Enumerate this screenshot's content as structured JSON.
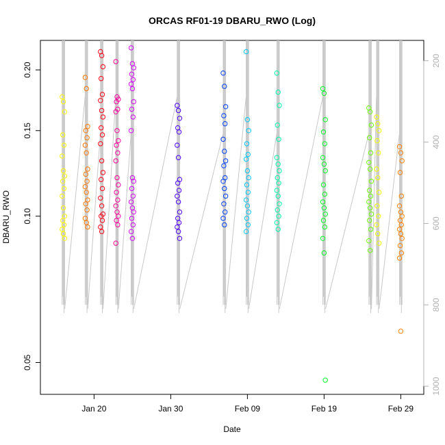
{
  "chart_data": {
    "type": "scatter",
    "title": "ORCAS RF01-19 DBARU_RWO (Log)",
    "xlabel": "Date",
    "ylabel": "DBARU_RWO",
    "y_scale": "log",
    "x_ticks": [
      "Jan 20",
      "Jan 30",
      "Feb 09",
      "Feb 19",
      "Feb 29"
    ],
    "y_ticks": [
      "0.05",
      "0.10",
      "0.15",
      "0.20"
    ],
    "y2_ticks": [
      "200",
      "400",
      "600",
      "800",
      "1000"
    ],
    "xlim": [
      "2016-01-13",
      "2016-03-03"
    ],
    "ylim": [
      0.043,
      0.23
    ],
    "y2lim": [
      150,
      1020
    ],
    "y2_reversed": true,
    "color_scale": "rainbow from yellow (first flight) to pink (last flight)",
    "flights": [
      {
        "date": "2016-01-16",
        "y": [
          0.176,
          0.172,
          0.164,
          0.147,
          0.14,
          0.133,
          0.124,
          0.121,
          0.118,
          0.114,
          0.11,
          0.104,
          0.1,
          0.098,
          0.096,
          0.094,
          0.092,
          0.09
        ]
      },
      {
        "date": "2016-01-19",
        "y": [
          0.193,
          0.183,
          0.153,
          0.15,
          0.145,
          0.14,
          0.135,
          0.125,
          0.122,
          0.118,
          0.115,
          0.112,
          0.108,
          0.106,
          0.103,
          0.099,
          0.097,
          0.095
        ]
      },
      {
        "date": "2016-01-21",
        "y": [
          0.218,
          0.214,
          0.203,
          0.192,
          0.178,
          0.173,
          0.165,
          0.16,
          0.152,
          0.147,
          0.141,
          0.13,
          0.123,
          0.119,
          0.114,
          0.109,
          0.105,
          0.101,
          0.1,
          0.098,
          0.095,
          0.093
        ]
      },
      {
        "date": "2016-01-23",
        "y": [
          0.208,
          0.176,
          0.174,
          0.172,
          0.166,
          0.164,
          0.15,
          0.143,
          0.14,
          0.135,
          0.13,
          0.12,
          0.116,
          0.112,
          0.108,
          0.105,
          0.102,
          0.1,
          0.098,
          0.096,
          0.088
        ]
      },
      {
        "date": "2016-01-25",
        "y": [
          0.222,
          0.206,
          0.202,
          0.196,
          0.191,
          0.187,
          0.183,
          0.172,
          0.166,
          0.16,
          0.15,
          0.12,
          0.118,
          0.114,
          0.11,
          0.107,
          0.104,
          0.102,
          0.099,
          0.096,
          0.093,
          0.09
        ]
      },
      {
        "date": "2016-01-31",
        "y": [
          0.169,
          0.165,
          0.159,
          0.152,
          0.149,
          0.14,
          0.132,
          0.119,
          0.117,
          0.113,
          0.11,
          0.107,
          0.102,
          0.099,
          0.097,
          0.095,
          0.093,
          0.09
        ]
      },
      {
        "date": "2016-02-06",
        "y": [
          0.197,
          0.185,
          0.168,
          0.161,
          0.155,
          0.144,
          0.136,
          0.13,
          0.127,
          0.12,
          0.118,
          0.114,
          0.11,
          0.106,
          0.102,
          0.099,
          0.096
        ]
      },
      {
        "date": "2016-02-09",
        "y": [
          0.218,
          0.158,
          0.15,
          0.141,
          0.134,
          0.131,
          0.124,
          0.12,
          0.116,
          0.112,
          0.108,
          0.105,
          0.102,
          0.099,
          0.096,
          0.093
        ]
      },
      {
        "date": "2016-02-13",
        "y": [
          0.197,
          0.18,
          0.169,
          0.154,
          0.144,
          0.132,
          0.128,
          0.124,
          0.12,
          0.117,
          0.113,
          0.11,
          0.106,
          0.103,
          0.1,
          0.097,
          0.094
        ]
      },
      {
        "date": "2016-02-19",
        "y": [
          0.183,
          0.179,
          0.158,
          0.149,
          0.141,
          0.132,
          0.128,
          0.124,
          0.116,
          0.111,
          0.107,
          0.104,
          0.101,
          0.098,
          0.095,
          0.09,
          0.084,
          0.046
        ]
      },
      {
        "date": "2016-02-25",
        "y": [
          0.167,
          0.164,
          0.154,
          0.145,
          0.135,
          0.129,
          0.125,
          0.118,
          0.113,
          0.11,
          0.107,
          0.104,
          0.101,
          0.098,
          0.094,
          0.089,
          0.085
        ]
      },
      {
        "date": "2016-02-26",
        "y": [
          0.16,
          0.155,
          0.15,
          0.143,
          0.135,
          0.125,
          0.12,
          0.112,
          0.105,
          0.1,
          0.096,
          0.092,
          0.088
        ]
      },
      {
        "date": "2016-02-29",
        "y": [
          0.139,
          0.135,
          0.13,
          0.123,
          0.11,
          0.105,
          0.102,
          0.1,
          0.098,
          0.096,
          0.094,
          0.092,
          0.09,
          0.087,
          0.084,
          0.082,
          0.058
        ]
      }
    ]
  }
}
